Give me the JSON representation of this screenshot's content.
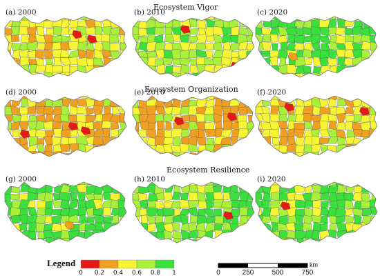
{
  "row_titles": {
    "vigor": "Ecosystem Vigor",
    "organization": "Ecosystem Organization",
    "resilience": "Ecosystem Resilience"
  },
  "panels": [
    {
      "id": "a",
      "label": "(a) 2000",
      "row": "vigor",
      "year": "2000",
      "dominant": [
        "#f5f535",
        "#a8f03a",
        "#f0a020"
      ],
      "hotspots": [
        "#e61919",
        "#e61919"
      ]
    },
    {
      "id": "b",
      "label": "(b) 2010",
      "row": "vigor",
      "year": "2010",
      "dominant": [
        "#a8f03a",
        "#f5f535",
        "#3ce03c"
      ],
      "hotspots": [
        "#e61919",
        "#e61919"
      ]
    },
    {
      "id": "c",
      "label": "(c) 2020",
      "row": "vigor",
      "year": "2020",
      "dominant": [
        "#3ce03c",
        "#a8f03a",
        "#f5f535"
      ],
      "hotspots": [
        "#f0a020"
      ]
    },
    {
      "id": "d",
      "label": "(d) 2000",
      "row": "organization",
      "year": "2000",
      "dominant": [
        "#f0a020",
        "#f5f535",
        "#a8f03a"
      ],
      "hotspots": [
        "#e61919",
        "#e61919",
        "#e61919"
      ]
    },
    {
      "id": "e",
      "label": "(e) 2010",
      "row": "organization",
      "year": "2010",
      "dominant": [
        "#f0a020",
        "#f5f535",
        "#a8f03a"
      ],
      "hotspots": [
        "#e61919",
        "#e61919"
      ]
    },
    {
      "id": "f",
      "label": "(f) 2020",
      "row": "organization",
      "year": "2020",
      "dominant": [
        "#f5f535",
        "#f0a020",
        "#a8f03a"
      ],
      "hotspots": [
        "#e61919",
        "#e61919"
      ]
    },
    {
      "id": "g",
      "label": "(g) 2000",
      "row": "resilience",
      "year": "2000",
      "dominant": [
        "#3ce03c",
        "#a8f03a",
        "#f5f535"
      ],
      "hotspots": [
        "#f0a020"
      ]
    },
    {
      "id": "h",
      "label": "(h) 2010",
      "row": "resilience",
      "year": "2010",
      "dominant": [
        "#3ce03c",
        "#a8f03a",
        "#f5f535"
      ],
      "hotspots": [
        "#e61919"
      ]
    },
    {
      "id": "i",
      "label": "(i) 2020",
      "row": "resilience",
      "year": "2020",
      "dominant": [
        "#3ce03c",
        "#a8f03a",
        "#f5f535"
      ],
      "hotspots": [
        "#e61919"
      ]
    }
  ],
  "legend": {
    "title": "Legend",
    "classes": [
      {
        "color": "#e61919",
        "range": "0-0.2"
      },
      {
        "color": "#f0a020",
        "range": "0.2-0.4"
      },
      {
        "color": "#f5f535",
        "range": "0.4-0.6"
      },
      {
        "color": "#a8f03a",
        "range": "0.6-0.8"
      },
      {
        "color": "#3ce03c",
        "range": "0.8-1"
      }
    ],
    "ticks": [
      "0",
      "0.2",
      "0.4",
      "0.6",
      "0.8",
      "1"
    ]
  },
  "scale_bar": {
    "ticks": [
      "0",
      "250",
      "500",
      "750"
    ],
    "unit": "km"
  },
  "colors": {
    "boundary": "#555555",
    "background": "#ffffff"
  }
}
